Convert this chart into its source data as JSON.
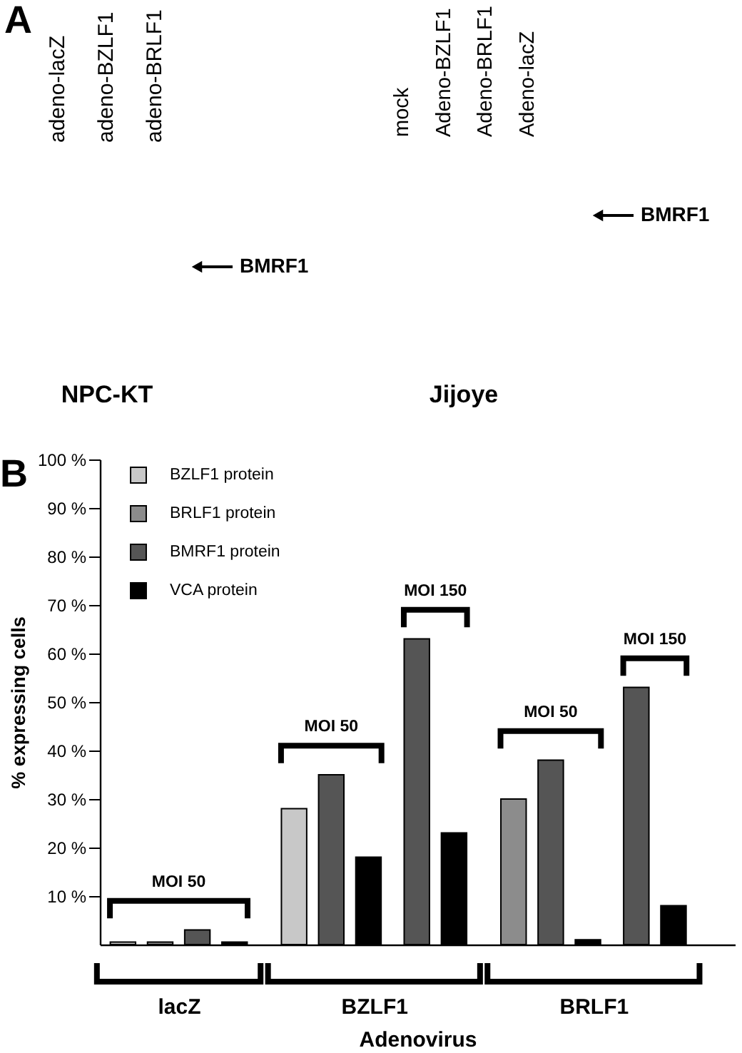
{
  "chart_data": [
    {
      "type": "other",
      "title": "A",
      "xlabel": "NPC-KT",
      "categories": [
        "adeno-lacZ",
        "adeno-BZLF1",
        "adeno-BRLF1"
      ],
      "annotations": [
        "BMRF1"
      ]
    },
    {
      "type": "other",
      "xlabel": "Jijoye",
      "categories": [
        "mock",
        "Adeno-BZLF1",
        "Adeno-BRLF1",
        "Adeno-lacZ"
      ],
      "annotations": [
        "BMRF1"
      ]
    },
    {
      "type": "bar",
      "title": "B",
      "xlabel": "Adenovirus",
      "ylabel": "% expressing cells",
      "categories": [
        "lacZ",
        "BZLF1",
        "BRLF1"
      ],
      "series": [
        {
          "name": "BZLF1 protein",
          "color": "#c8c8c8",
          "values": [
            0.5,
            28,
            null
          ]
        },
        {
          "name": "BRLF1 protein",
          "color": "#8c8c8c",
          "values": [
            0.5,
            null,
            30
          ]
        },
        {
          "name": "BMRF1 protein",
          "color": "#555555",
          "values": [
            3,
            35,
            38
          ]
        },
        {
          "name": "VCA protein",
          "color": "#000000",
          "values": [
            0.5,
            18,
            1
          ]
        },
        {
          "color": "#555555",
          "values": [
            null,
            63,
            53
          ]
        },
        {
          "color": "#000000",
          "values": [
            null,
            23,
            8
          ]
        }
      ],
      "ylim": [
        0,
        100
      ],
      "yticks": [
        {
          "value": 10,
          "label": "10 %"
        },
        {
          "value": 20,
          "label": "20 %"
        },
        {
          "value": 30,
          "label": "30 %"
        },
        {
          "value": 40,
          "label": "40 %"
        },
        {
          "value": 50,
          "label": "50 %"
        },
        {
          "value": 60,
          "label": "60 %"
        },
        {
          "value": 70,
          "label": "70 %"
        },
        {
          "value": 80,
          "label": "80 %"
        },
        {
          "value": 90,
          "label": "90 %"
        },
        {
          "value": 100,
          "label": "100 %"
        }
      ],
      "legend": "top left",
      "grid": false,
      "annotations": [
        "MOI 50",
        "MOI 50",
        "MOI 150",
        "MOI 50",
        "MOI 150"
      ]
    }
  ]
}
